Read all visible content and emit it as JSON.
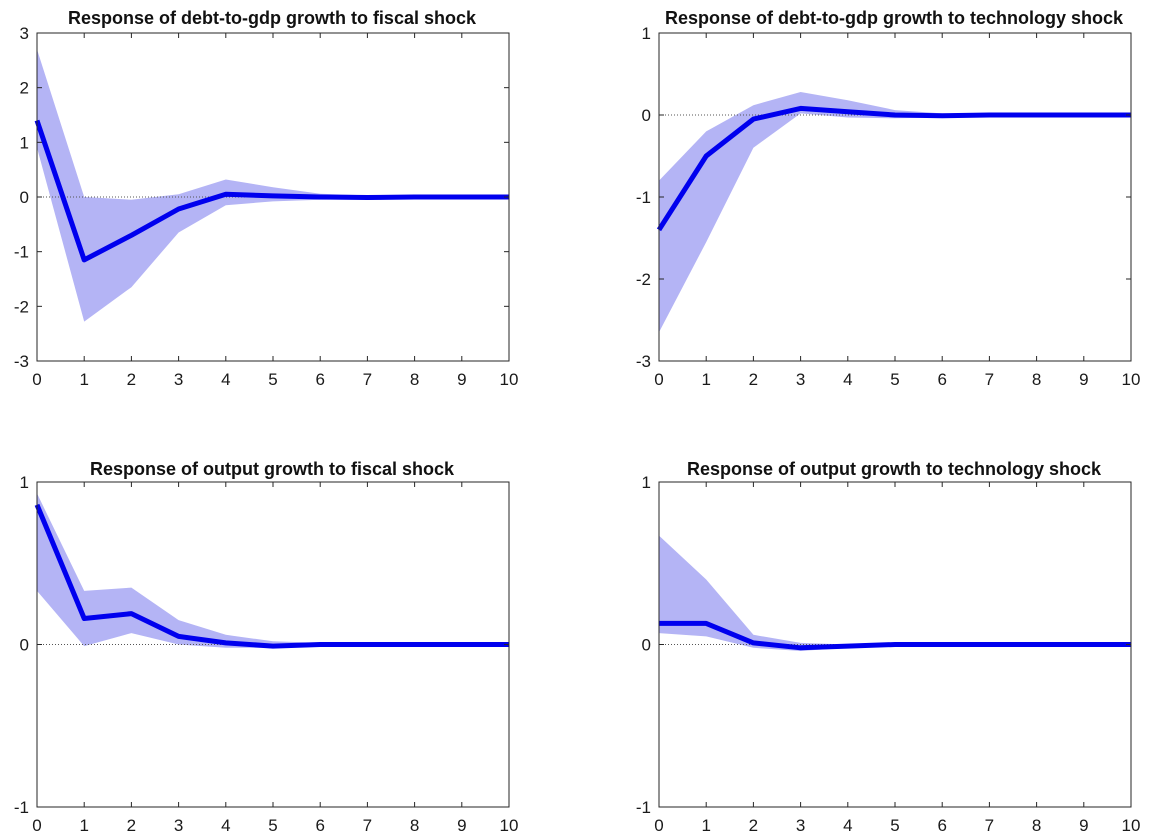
{
  "chart_data": [
    {
      "type": "area",
      "title": "Response of debt-to-gdp growth to fiscal shock",
      "x": [
        0,
        1,
        2,
        3,
        4,
        5,
        6,
        7,
        8,
        9,
        10
      ],
      "xlim": [
        0,
        10
      ],
      "ylim": [
        -3,
        3
      ],
      "xticks": [
        "0",
        "1",
        "2",
        "3",
        "4",
        "5",
        "6",
        "7",
        "8",
        "9",
        "10"
      ],
      "yticks": [
        "-3",
        "-2",
        "-1",
        "0",
        "1",
        "2",
        "3"
      ],
      "grid": false,
      "series": [
        {
          "role": "response",
          "values": [
            1.4,
            -1.15,
            -0.7,
            -0.22,
            0.05,
            0.02,
            0.0,
            -0.01,
            0.0,
            0.0,
            0.0
          ]
        },
        {
          "role": "band",
          "upper": [
            2.7,
            0.0,
            -0.05,
            0.05,
            0.32,
            0.18,
            0.06,
            0.03,
            0.01,
            0.0,
            0.0
          ],
          "lower": [
            0.9,
            -2.28,
            -1.65,
            -0.65,
            -0.15,
            -0.08,
            -0.05,
            -0.03,
            -0.01,
            0.0,
            0.0
          ]
        }
      ]
    },
    {
      "type": "area",
      "title": "Response of debt-to-gdp growth to technology shock",
      "x": [
        0,
        1,
        2,
        3,
        4,
        5,
        6,
        7,
        8,
        9,
        10
      ],
      "xlim": [
        0,
        10
      ],
      "ylim": [
        -3,
        1
      ],
      "xticks": [
        "0",
        "1",
        "2",
        "3",
        "4",
        "5",
        "6",
        "7",
        "8",
        "9",
        "10"
      ],
      "yticks": [
        "-3",
        "-2",
        "-1",
        "0",
        "1"
      ],
      "grid": false,
      "series": [
        {
          "role": "response",
          "values": [
            -1.4,
            -0.5,
            -0.05,
            0.08,
            0.04,
            0.0,
            -0.01,
            0.0,
            0.0,
            0.0,
            0.0
          ]
        },
        {
          "role": "band",
          "upper": [
            -0.8,
            -0.2,
            0.12,
            0.28,
            0.18,
            0.06,
            0.02,
            0.01,
            0.0,
            0.0,
            0.0
          ],
          "lower": [
            -2.65,
            -1.55,
            -0.4,
            0.02,
            -0.03,
            -0.04,
            -0.03,
            -0.01,
            0.0,
            0.0,
            0.0
          ]
        }
      ]
    },
    {
      "type": "area",
      "title": "Response of output growth to fiscal shock",
      "x": [
        0,
        1,
        2,
        3,
        4,
        5,
        6,
        7,
        8,
        9,
        10
      ],
      "xlim": [
        0,
        10
      ],
      "ylim": [
        -1,
        1
      ],
      "xticks": [
        "0",
        "1",
        "2",
        "3",
        "4",
        "5",
        "6",
        "7",
        "8",
        "9",
        "10"
      ],
      "yticks": [
        "-1",
        "0",
        "1"
      ],
      "grid": false,
      "series": [
        {
          "role": "response",
          "values": [
            0.86,
            0.16,
            0.19,
            0.05,
            0.01,
            -0.01,
            0.0,
            0.0,
            0.0,
            0.0,
            0.0
          ]
        },
        {
          "role": "band",
          "upper": [
            0.93,
            0.33,
            0.35,
            0.15,
            0.06,
            0.02,
            0.01,
            0.0,
            0.0,
            0.0,
            0.0
          ],
          "lower": [
            0.33,
            -0.01,
            0.07,
            0.0,
            -0.02,
            -0.02,
            -0.01,
            0.0,
            0.0,
            0.0,
            0.0
          ]
        }
      ]
    },
    {
      "type": "area",
      "title": "Response of output growth to technology shock",
      "x": [
        0,
        1,
        2,
        3,
        4,
        5,
        6,
        7,
        8,
        9,
        10
      ],
      "xlim": [
        0,
        10
      ],
      "ylim": [
        -1,
        1
      ],
      "xticks": [
        "0",
        "1",
        "2",
        "3",
        "4",
        "5",
        "6",
        "7",
        "8",
        "9",
        "10"
      ],
      "yticks": [
        "-1",
        "0",
        "1"
      ],
      "grid": false,
      "series": [
        {
          "role": "response",
          "values": [
            0.13,
            0.13,
            0.01,
            -0.02,
            -0.01,
            0.0,
            0.0,
            0.0,
            0.0,
            0.0,
            0.0
          ]
        },
        {
          "role": "band",
          "upper": [
            0.67,
            0.4,
            0.06,
            0.01,
            0.0,
            0.0,
            0.0,
            0.0,
            0.0,
            0.0,
            0.0
          ],
          "lower": [
            0.07,
            0.05,
            -0.02,
            -0.04,
            -0.02,
            -0.01,
            0.0,
            0.0,
            0.0,
            0.0,
            0.0
          ]
        }
      ]
    }
  ]
}
